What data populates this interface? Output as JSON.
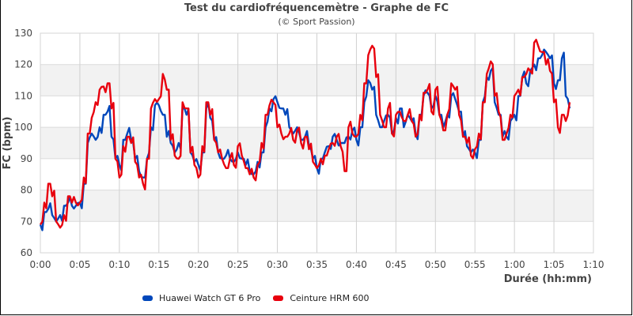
{
  "title": "Test du cardiofréquencemètre - Graphe de FC",
  "subtitle": "(© Sport Passion)",
  "chart_data": {
    "type": "line",
    "title": "Test du cardiofréquencemètre - Graphe de FC",
    "subtitle": "(© Sport Passion)",
    "xlabel": "Durée (hh:mm)",
    "ylabel": "FC (bpm)",
    "xlim_minutes": [
      0,
      70
    ],
    "ylim": [
      60,
      130
    ],
    "x_ticks": [
      "0:00",
      "0:05",
      "0:10",
      "0:15",
      "0:20",
      "0:25",
      "0:30",
      "0:35",
      "0:40",
      "0:45",
      "0:50",
      "0:55",
      "1:00",
      "1:05",
      "1:10"
    ],
    "y_ticks": [
      60,
      70,
      80,
      90,
      100,
      110,
      120,
      130
    ],
    "grid": true,
    "legend_position": "bottom",
    "x_minutes": [
      0,
      0.5,
      1,
      1.5,
      2,
      2.5,
      3,
      3.5,
      4,
      4.5,
      5,
      5.5,
      6,
      6.5,
      7,
      7.5,
      8,
      8.5,
      9,
      9.5,
      10,
      10.5,
      11,
      11.5,
      12,
      12.5,
      13,
      13.5,
      14,
      14.5,
      15,
      15.5,
      16,
      16.5,
      17,
      17.5,
      18,
      18.5,
      19,
      19.5,
      20,
      20.5,
      21,
      21.5,
      22,
      22.5,
      23,
      23.5,
      24,
      24.5,
      25,
      25.5,
      26,
      26.5,
      27,
      27.5,
      28,
      28.5,
      29,
      29.5,
      30,
      30.5,
      31,
      31.5,
      32,
      32.5,
      33,
      33.5,
      34,
      34.5,
      35,
      35.5,
      36,
      36.5,
      37,
      37.5,
      38,
      38.5,
      39,
      39.5,
      40,
      40.5,
      41,
      41.5,
      42,
      42.5,
      43,
      43.5,
      44,
      44.5,
      45,
      45.5,
      46,
      46.5,
      47,
      47.5,
      48,
      48.5,
      49,
      49.5,
      50,
      50.5,
      51,
      51.5,
      52,
      52.5,
      53,
      53.5,
      54,
      54.5,
      55,
      55.5,
      56,
      56.5,
      57,
      57.5,
      58,
      58.5,
      59,
      59.5,
      60,
      60.5,
      61,
      61.5,
      62,
      62.5,
      63,
      63.5,
      64,
      64.5,
      65,
      65.5,
      66,
      66.5,
      67
    ],
    "series": [
      {
        "name": "Huawei Watch GT 6 Pro",
        "color": "#0047bb",
        "values": [
          69,
          73,
          74,
          72,
          70,
          72,
          75,
          76,
          75,
          75,
          76,
          82,
          95,
          98,
          96,
          100,
          104,
          105,
          97,
          90,
          88,
          96,
          98,
          96,
          90,
          86,
          84,
          90,
          100,
          107,
          107,
          104,
          97,
          95,
          92,
          95,
          106,
          104,
          92,
          89,
          88,
          92,
          106,
          103,
          96,
          92,
          90,
          91,
          90,
          89,
          92,
          90,
          88,
          86,
          85,
          89,
          92,
          100,
          106,
          109,
          108,
          106,
          104,
          100,
          98,
          100,
          96,
          97,
          94,
          90,
          87,
          90,
          92,
          94,
          97,
          96,
          95,
          95,
          97,
          99,
          96,
          100,
          108,
          115,
          112,
          104,
          100,
          102,
          104,
          98,
          103,
          106,
          100,
          104,
          102,
          98,
          104,
          110,
          111,
          106,
          110,
          104,
          100,
          104,
          110,
          109,
          105,
          97,
          94,
          92,
          92,
          96,
          108,
          116,
          118,
          108,
          104,
          97,
          97,
          102,
          104,
          110,
          116,
          114,
          118,
          120,
          122,
          123,
          124,
          122,
          114,
          115,
          122,
          110,
          106,
          104,
          101,
          98,
          96
        ]
      },
      {
        "name": "Ceinture HRM 600",
        "color": "#e8000d",
        "values": [
          69,
          76,
          82,
          78,
          70,
          68,
          72,
          78,
          76,
          76,
          76,
          84,
          98,
          103,
          108,
          112,
          113,
          114,
          106,
          90,
          84,
          94,
          97,
          95,
          89,
          84,
          82,
          90,
          106,
          109,
          109,
          117,
          112,
          96,
          91,
          90,
          108,
          106,
          92,
          88,
          84,
          94,
          108,
          104,
          96,
          92,
          90,
          87,
          90,
          88,
          94,
          91,
          87,
          85,
          84,
          88,
          95,
          104,
          107,
          108,
          100,
          98,
          97,
          98,
          96,
          99,
          95,
          97,
          93,
          89,
          87,
          90,
          91,
          93,
          95,
          97,
          94,
          86,
          100,
          98,
          97,
          104,
          114,
          123,
          126,
          116,
          104,
          100,
          106,
          98,
          104,
          105,
          102,
          104,
          102,
          97,
          104,
          111,
          112,
          105,
          112,
          104,
          99,
          104,
          114,
          112,
          104,
          97,
          95,
          91,
          93,
          98,
          108,
          117,
          121,
          110,
          105,
          96,
          98,
          104,
          110,
          112,
          116,
          117,
          118,
          127,
          126,
          124,
          120,
          118,
          108,
          100,
          104,
          102,
          108,
          104,
          100,
          97,
          93
        ]
      }
    ]
  },
  "legend": [
    {
      "label": "Huawei Watch GT 6 Pro",
      "color": "#0047bb"
    },
    {
      "label": "Ceinture HRM 600",
      "color": "#e8000d"
    }
  ]
}
